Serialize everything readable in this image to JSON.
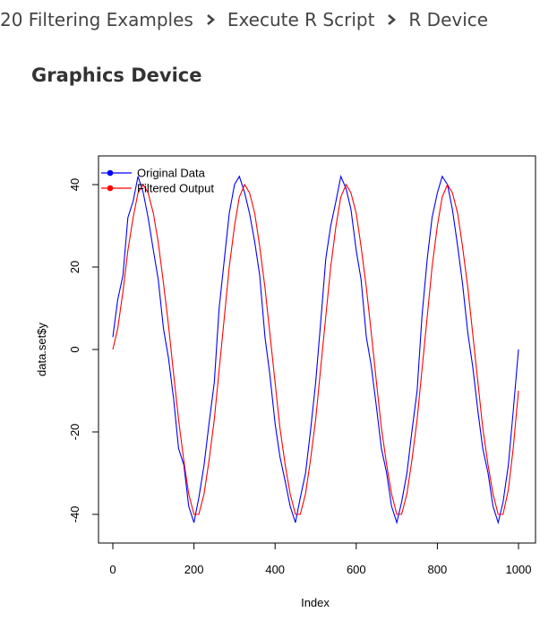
{
  "breadcrumb": {
    "items": [
      "20 Filtering Examples",
      "Execute R Script",
      "R Device"
    ]
  },
  "page": {
    "title": "Graphics Device"
  },
  "colors": {
    "original": "#0000ff",
    "filtered": "#ff0000",
    "axis": "#000000"
  },
  "chart_data": {
    "type": "line",
    "title": "",
    "xlabel": "Index",
    "ylabel": "data.set$y",
    "xlim": [
      0,
      1000
    ],
    "ylim": [
      -45,
      45
    ],
    "xticks": [
      "0",
      "200",
      "400",
      "600",
      "800",
      "1000"
    ],
    "yticks": [
      "-40",
      "-20",
      "0",
      "20",
      "40"
    ],
    "legend": {
      "placement": "top-left"
    },
    "series": [
      {
        "name": "Original Data",
        "color": "#0000ff",
        "x": [
          0,
          12,
          25,
          37,
          50,
          62,
          75,
          87,
          100,
          112,
          125,
          137,
          150,
          162,
          175,
          187,
          200,
          212,
          225,
          237,
          250,
          262,
          275,
          287,
          300,
          312,
          325,
          337,
          350,
          362,
          375,
          387,
          400,
          412,
          425,
          437,
          450,
          462,
          475,
          487,
          500,
          512,
          525,
          537,
          550,
          562,
          575,
          587,
          600,
          612,
          625,
          637,
          650,
          662,
          675,
          687,
          700,
          712,
          725,
          737,
          750,
          762,
          775,
          787,
          800,
          812,
          825,
          837,
          850,
          862,
          875,
          887,
          900,
          912,
          925,
          937,
          950,
          962,
          975,
          987,
          1000
        ],
        "y": [
          3,
          12,
          18,
          32,
          36,
          42,
          38,
          32,
          24,
          17,
          5,
          -2,
          -12,
          -24,
          -28,
          -38,
          -42,
          -36,
          -28,
          -18,
          -8,
          10,
          22,
          33,
          40,
          42,
          38,
          33,
          26,
          18,
          3,
          -6,
          -18,
          -26,
          -32,
          -38,
          -42,
          -36,
          -30,
          -20,
          -8,
          6,
          22,
          30,
          36,
          42,
          39,
          34,
          24,
          17,
          3,
          -4,
          -14,
          -24,
          -30,
          -38,
          -42,
          -37,
          -30,
          -20,
          -10,
          8,
          22,
          32,
          38,
          42,
          40,
          34,
          25,
          16,
          4,
          -4,
          -15,
          -24,
          -30,
          -38,
          -42,
          -37,
          -28,
          -15,
          0
        ]
      },
      {
        "name": "Filtered Output",
        "color": "#ff0000",
        "x": [
          0,
          12,
          25,
          37,
          50,
          62,
          75,
          87,
          100,
          112,
          125,
          137,
          150,
          162,
          175,
          187,
          200,
          212,
          225,
          237,
          250,
          262,
          275,
          287,
          300,
          312,
          325,
          337,
          350,
          362,
          375,
          387,
          400,
          412,
          425,
          437,
          450,
          462,
          475,
          487,
          500,
          512,
          525,
          537,
          550,
          562,
          575,
          587,
          600,
          612,
          625,
          637,
          650,
          662,
          675,
          687,
          700,
          712,
          725,
          737,
          750,
          762,
          775,
          787,
          800,
          812,
          825,
          837,
          850,
          862,
          875,
          887,
          900,
          912,
          925,
          937,
          950,
          962,
          975,
          987,
          1000
        ],
        "y": [
          0,
          5,
          14,
          24,
          32,
          38,
          40,
          38,
          33,
          26,
          16,
          6,
          -6,
          -17,
          -27,
          -35,
          -40,
          -40,
          -35,
          -27,
          -17,
          -5,
          8,
          20,
          30,
          37,
          40,
          38,
          33,
          25,
          15,
          4,
          -8,
          -19,
          -28,
          -35,
          -40,
          -40,
          -35,
          -27,
          -17,
          -5,
          8,
          20,
          30,
          37,
          40,
          38,
          33,
          25,
          15,
          4,
          -8,
          -19,
          -28,
          -35,
          -40,
          -40,
          -35,
          -27,
          -17,
          -5,
          8,
          20,
          30,
          37,
          40,
          38,
          33,
          25,
          15,
          4,
          -8,
          -19,
          -28,
          -35,
          -40,
          -40,
          -34,
          -24,
          -10
        ]
      }
    ]
  }
}
